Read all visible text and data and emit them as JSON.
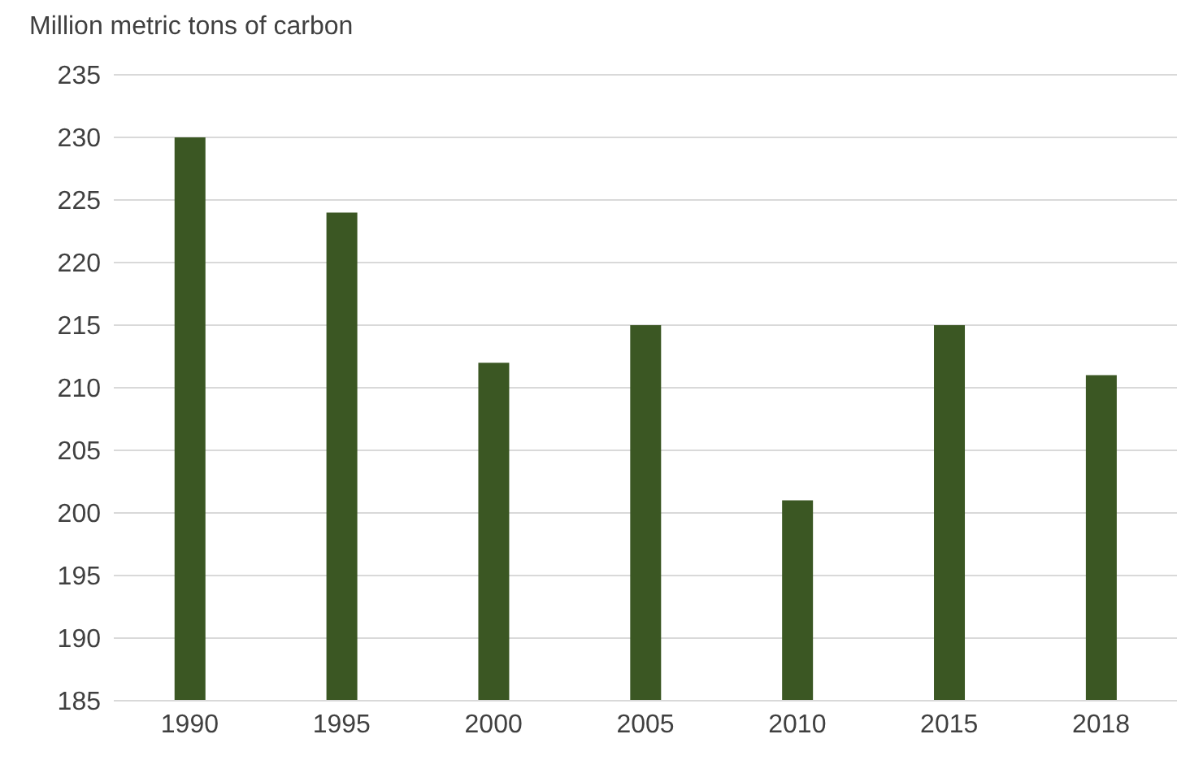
{
  "chart_data": {
    "type": "bar",
    "ylabel": "Million metric tons of carbon",
    "categories": [
      "1990",
      "1995",
      "2000",
      "2005",
      "2010",
      "2015",
      "2018"
    ],
    "values": [
      230,
      224,
      212,
      215,
      201,
      215,
      211
    ],
    "color": "#3b5723",
    "ylim": [
      185,
      235
    ],
    "yticks": [
      185,
      190,
      195,
      200,
      205,
      210,
      215,
      220,
      225,
      230,
      235
    ],
    "grid": "y"
  }
}
